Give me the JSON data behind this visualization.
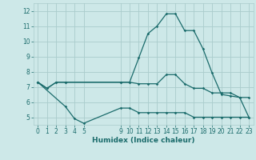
{
  "xlabel": "Humidex (Indice chaleur)",
  "bg_color": "#cde8e8",
  "grid_color": "#aacccc",
  "line_color": "#1a6b6b",
  "ylim": [
    4.5,
    12.5
  ],
  "xlim": [
    -0.5,
    23.5
  ],
  "yticks": [
    5,
    6,
    7,
    8,
    9,
    10,
    11,
    12
  ],
  "xticks": [
    0,
    1,
    2,
    3,
    4,
    5,
    9,
    10,
    11,
    12,
    13,
    14,
    15,
    16,
    17,
    18,
    19,
    20,
    21,
    22,
    23
  ],
  "line1_x": [
    0,
    1,
    2,
    3,
    9,
    10,
    11,
    12,
    13,
    14,
    15,
    16,
    17,
    18,
    19,
    20,
    21,
    22,
    23
  ],
  "line1_y": [
    7.3,
    6.9,
    7.3,
    7.3,
    7.3,
    7.3,
    8.9,
    10.5,
    11.0,
    11.8,
    11.8,
    10.7,
    10.7,
    9.5,
    7.9,
    6.5,
    6.4,
    6.3,
    6.3
  ],
  "line2_x": [
    0,
    1,
    2,
    3,
    9,
    10,
    11,
    12,
    13,
    14,
    15,
    16,
    17,
    18,
    19,
    20,
    21,
    22,
    23
  ],
  "line2_y": [
    7.3,
    6.9,
    7.3,
    7.3,
    7.3,
    7.3,
    7.2,
    7.2,
    7.2,
    7.8,
    7.8,
    7.2,
    6.9,
    6.9,
    6.6,
    6.6,
    6.6,
    6.3,
    5.0
  ],
  "line3_x": [
    0,
    3,
    4,
    5,
    9,
    10,
    11,
    12,
    13,
    14,
    15,
    16,
    17,
    18,
    19,
    20,
    21,
    22,
    23
  ],
  "line3_y": [
    7.3,
    5.7,
    4.9,
    4.6,
    5.6,
    5.6,
    5.3,
    5.3,
    5.3,
    5.3,
    5.3,
    5.3,
    5.0,
    5.0,
    5.0,
    5.0,
    5.0,
    5.0,
    5.0
  ]
}
